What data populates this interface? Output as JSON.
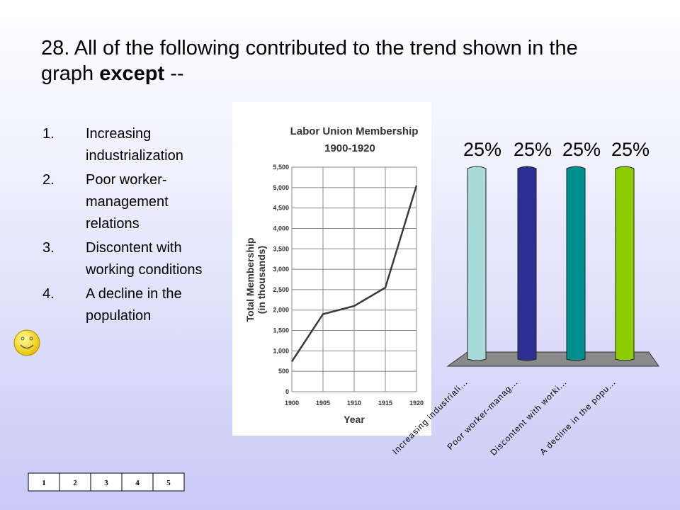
{
  "question": {
    "title": "28.  All of the following contributed to the trend shown in the graph",
    "emphasis": "except",
    "end": "--",
    "options": [
      {
        "number": "1.",
        "text": "Increasing industrialization"
      },
      {
        "number": "2.",
        "text": "Poor worker-management relations"
      },
      {
        "number": "3.",
        "text": "Discontent with working conditions"
      },
      {
        "number": "4.",
        "text": "A decline in the population"
      }
    ]
  },
  "nav": [
    "1",
    "2",
    "3",
    "4",
    "5"
  ],
  "chart_data": [
    {
      "type": "line",
      "title": "Labor Union Membership",
      "subtitle": "1900-1920",
      "x": [
        1900,
        1905,
        1910,
        1915,
        1920
      ],
      "values": [
        740,
        1900,
        2100,
        2550,
        5050
      ],
      "color": "#3a3a3a",
      "xlim": [
        1900,
        1920
      ],
      "xticks": [
        1900,
        1905,
        1910,
        1915,
        1920
      ],
      "ylim": [
        0,
        5500
      ],
      "yticks": [
        0,
        500,
        {
          "value": 1000,
          "label": "1,000"
        },
        {
          "value": 1500,
          "label": "1,500"
        },
        {
          "value": 2000,
          "label": "2,000"
        },
        {
          "value": 2500,
          "label": "2,500"
        },
        {
          "value": 3000,
          "label": "3,000"
        },
        {
          "value": 3500,
          "label": "3,500"
        },
        {
          "value": 4000,
          "label": "4,000"
        },
        {
          "value": 4500,
          "label": "4,500"
        },
        {
          "value": 5000,
          "label": "5,000"
        },
        {
          "value": 5500,
          "label": "5,500"
        }
      ],
      "xlabel": "Year",
      "ylabel": [
        "Total Membership",
        "(in thousands)"
      ],
      "grid": true
    },
    {
      "type": "bar",
      "categories": [
        "Increasing industriali...",
        "Poor worker-manag...",
        "Discontent with worki...",
        "A decline in the popu..."
      ],
      "values": [
        25,
        25,
        25,
        25
      ],
      "value_labels": [
        "25%",
        "25%",
        "25%",
        "25%"
      ],
      "colors": [
        "#a9dada",
        "#2e2e92",
        "#008f8f",
        "#8ccc00"
      ]
    }
  ]
}
